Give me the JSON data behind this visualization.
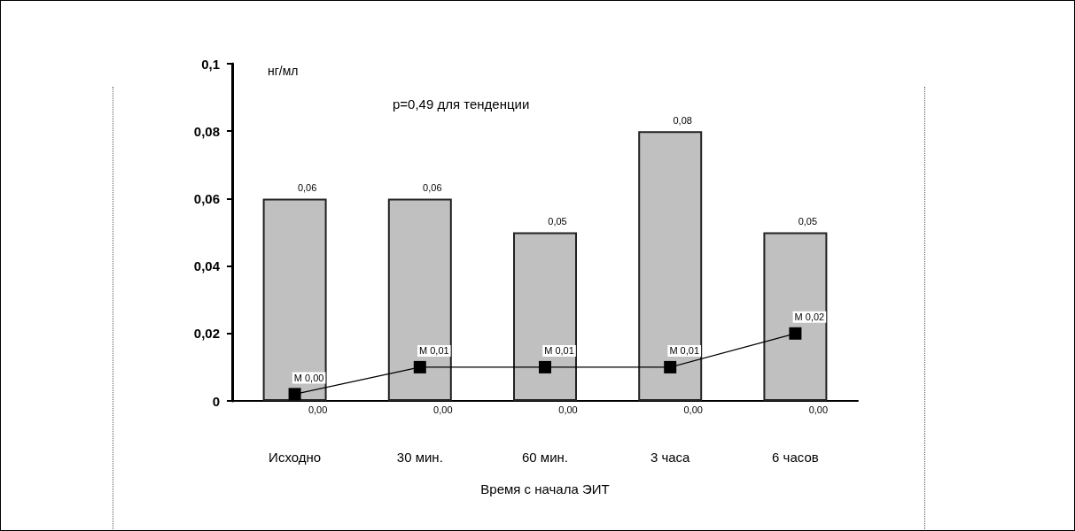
{
  "chart_data": {
    "type": "bar",
    "ylabel": "нг/мл",
    "xlabel": "Время с начала ЭИТ",
    "categories": [
      "Исходно",
      "30 мин.",
      "60 мин.",
      "3 часа",
      "6 часов"
    ],
    "series": [
      {
        "color": "#c0c0c0",
        "values": [
          0.06,
          0.06,
          0.05,
          0.08,
          0.05
        ],
        "value_labels": [
          "0,06",
          "0,06",
          "0,05",
          "0,08",
          "0,05"
        ]
      },
      {
        "type": "line",
        "color": "#000000",
        "values": [
          0.002,
          0.01,
          0.01,
          0.01,
          0.02
        ],
        "value_labels": [
          "M 0,00",
          "M 0,01",
          "M 0,01",
          "M 0,01",
          "M 0,02"
        ],
        "marker": "square",
        "line_style": "solid"
      }
    ],
    "annotations": [
      {
        "text": "p=0,49 для тенденции"
      },
      {
        "text": "0,00",
        "x": "Исходно",
        "y": 0
      },
      {
        "text": "0,00",
        "x": "30 мин.",
        "y": 0
      },
      {
        "text": "0,00",
        "x": "60 мин.",
        "y": 0
      },
      {
        "text": "0,00",
        "x": "3 часа",
        "y": 0
      },
      {
        "text": "0,00",
        "x": "6 часов",
        "y": 0
      }
    ],
    "ylim": [
      0,
      0.1
    ],
    "yticks": [
      {
        "value": 0,
        "label": "0"
      },
      {
        "value": 0.02,
        "label": "0,02"
      },
      {
        "value": 0.04,
        "label": "0,04"
      },
      {
        "value": 0.06,
        "label": "0,06"
      },
      {
        "value": 0.08,
        "label": "0,08"
      },
      {
        "value": 0.1,
        "label": "0,1"
      }
    ],
    "grid": false
  }
}
